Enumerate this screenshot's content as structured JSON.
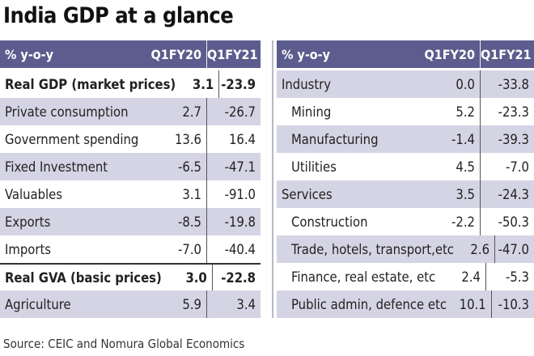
{
  "title": "India GDP at a glance",
  "header": {
    "label": "% y-o-y",
    "col1": "Q1FY20",
    "col2": "Q1FY21"
  },
  "left_rows": [
    {
      "label": "Real GDP (market prices)",
      "q1fy20": "3.1",
      "q1fy21": "-23.9"
    },
    {
      "label": "Private consumption",
      "q1fy20": "2.7",
      "q1fy21": "-26.7"
    },
    {
      "label": "Government spending",
      "q1fy20": "13.6",
      "q1fy21": "16.4"
    },
    {
      "label": "Fixed Investment",
      "q1fy20": "-6.5",
      "q1fy21": "-47.1"
    },
    {
      "label": "Valuables",
      "q1fy20": "3.1",
      "q1fy21": "-91.0"
    },
    {
      "label": "Exports",
      "q1fy20": "-8.5",
      "q1fy21": "-19.8"
    },
    {
      "label": "Imports",
      "q1fy20": "-7.0",
      "q1fy21": "-40.4"
    },
    {
      "label": "Real GVA (basic prices)",
      "q1fy20": "3.0",
      "q1fy21": "-22.8"
    },
    {
      "label": "Agriculture",
      "q1fy20": "5.9",
      "q1fy21": "3.4"
    }
  ],
  "right_rows": [
    {
      "label": "Industry",
      "q1fy20": "0.0",
      "q1fy21": "-33.8"
    },
    {
      "label": "Mining",
      "q1fy20": "5.2",
      "q1fy21": "-23.3"
    },
    {
      "label": "Manufacturing",
      "q1fy20": "-1.4",
      "q1fy21": "-39.3"
    },
    {
      "label": "Utilities",
      "q1fy20": "4.5",
      "q1fy21": "-7.0"
    },
    {
      "label": "Services",
      "q1fy20": "3.5",
      "q1fy21": "-24.3"
    },
    {
      "label": "Construction",
      "q1fy20": "-2.2",
      "q1fy21": "-50.3"
    },
    {
      "label": "Trade, hotels, transport,etc",
      "q1fy20": "2.6",
      "q1fy21": "-47.0"
    },
    {
      "label": "Finance, real estate, etc",
      "q1fy20": "2.4",
      "q1fy21": "-5.3"
    },
    {
      "label": "Public admin, defence etc",
      "q1fy20": "10.1",
      "q1fy21": "-10.3"
    }
  ],
  "source": "Source: CEIC and Nomura Global Economics",
  "colors": {
    "header": "#5c5c8e",
    "shade": "#d5d4e4"
  }
}
